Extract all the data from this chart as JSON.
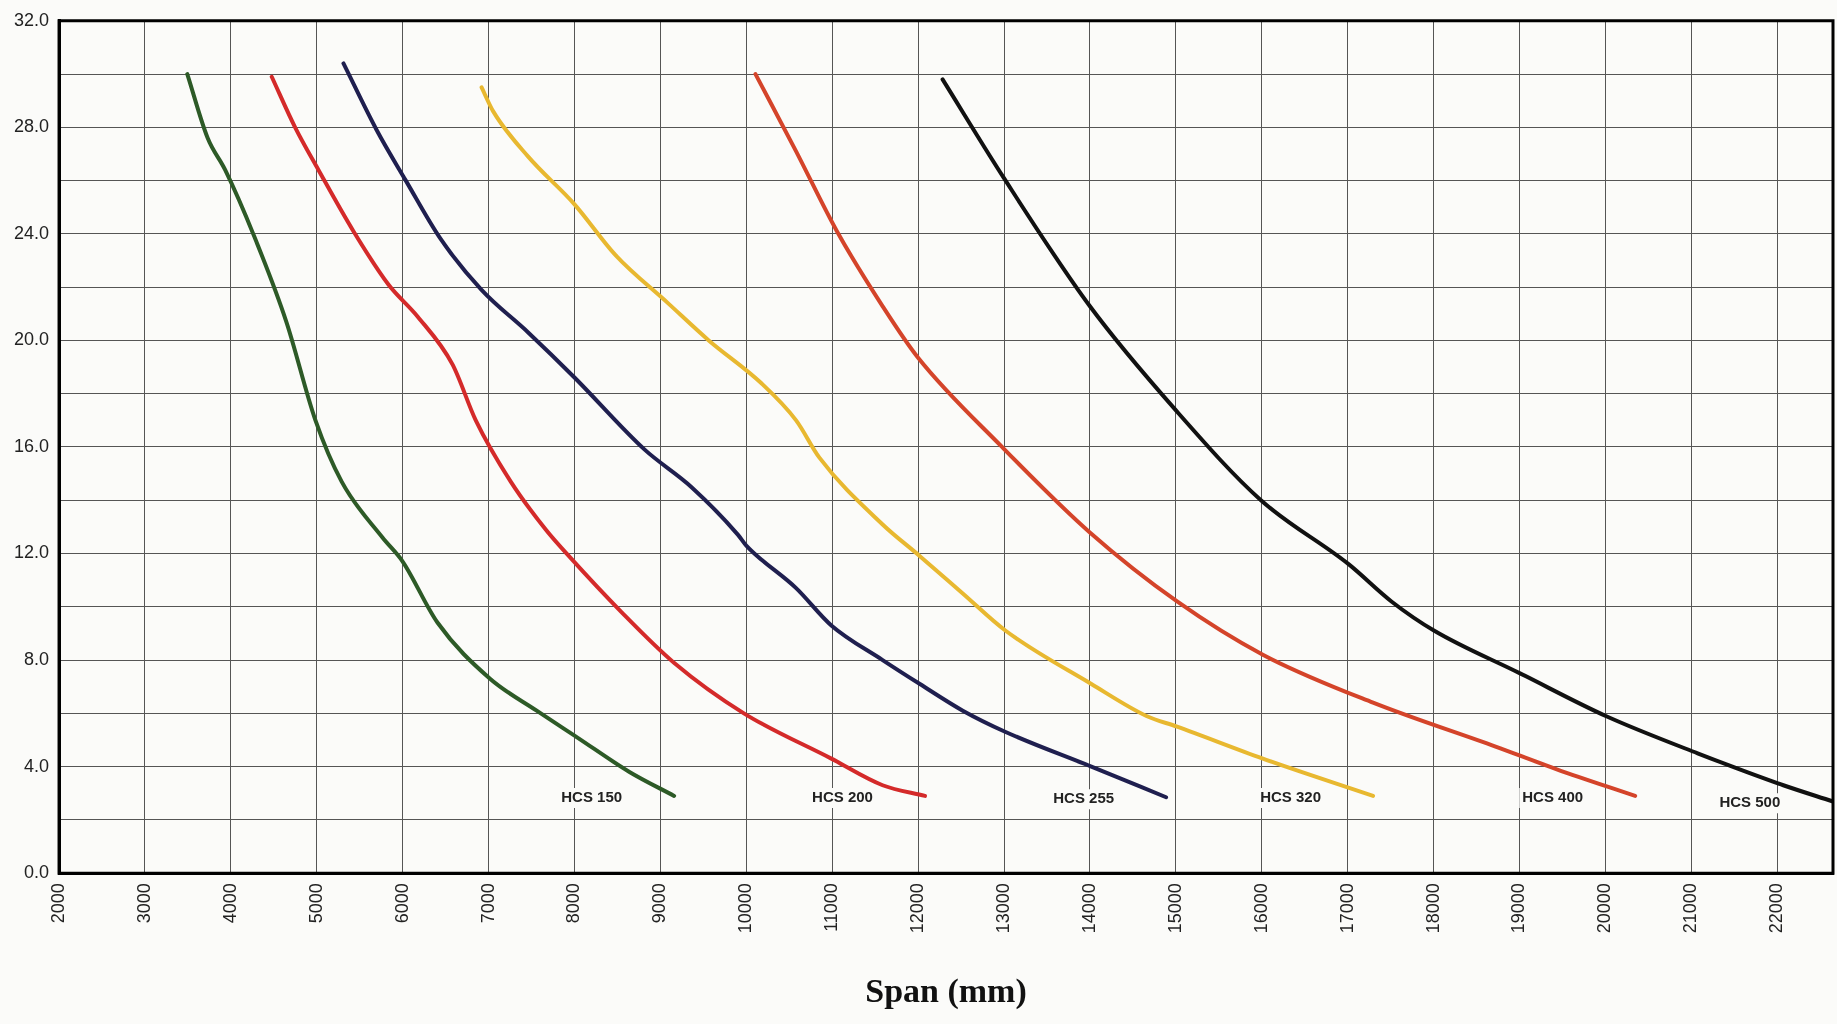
{
  "chart_data": {
    "type": "line",
    "xlabel": "Span (mm)",
    "xlim": [
      2000,
      22650
    ],
    "xticks": [
      2000,
      3000,
      4000,
      5000,
      6000,
      7000,
      8000,
      9000,
      10000,
      11000,
      12000,
      13000,
      14000,
      15000,
      16000,
      17000,
      18000,
      19000,
      20000,
      21000,
      22000
    ],
    "ylim": [
      0,
      32
    ],
    "yticks": [
      {
        "value": 0,
        "label": "0.0"
      },
      {
        "value": 2,
        "label": null
      },
      {
        "value": 4,
        "label": "4.0"
      },
      {
        "value": 6,
        "label": null
      },
      {
        "value": 8,
        "label": "8.0"
      },
      {
        "value": 10,
        "label": null
      },
      {
        "value": 12,
        "label": "12.0"
      },
      {
        "value": 14,
        "label": null
      },
      {
        "value": 16,
        "label": "16.0"
      },
      {
        "value": 18,
        "label": null
      },
      {
        "value": 20,
        "label": "20.0"
      },
      {
        "value": 22,
        "label": null
      },
      {
        "value": 24,
        "label": "24.0"
      },
      {
        "value": 26,
        "label": null
      },
      {
        "value": 28,
        "label": "28.0"
      },
      {
        "value": 30,
        "label": null
      },
      {
        "value": 32,
        "label": "32.0"
      }
    ],
    "grid": true,
    "series": [
      {
        "name": "HCS 150",
        "color": "#2d5a27",
        "x": [
          3493,
          3730,
          3934,
          4273,
          4646,
          4985,
          5290,
          5765,
          6000,
          6407,
          7017,
          7560,
          8030,
          8640,
          9160
        ],
        "values": [
          30.0,
          27.6,
          26.4,
          23.9,
          20.7,
          17.0,
          14.7,
          12.6,
          11.7,
          9.4,
          7.3,
          6.1,
          5.1,
          3.8,
          2.9
        ]
      },
      {
        "name": "HCS 200",
        "color": "#d42a2a",
        "x": [
          4476,
          4748,
          5020,
          5427,
          5834,
          6173,
          6580,
          6851,
          7258,
          7665,
          7936,
          8547,
          9158,
          9972,
          10990,
          11587,
          12080
        ],
        "values": [
          29.9,
          28.0,
          26.4,
          24.1,
          22.1,
          20.9,
          19.1,
          17.0,
          14.7,
          12.9,
          11.9,
          9.8,
          7.9,
          6.0,
          4.3,
          3.3,
          2.9
        ]
      },
      {
        "name": "HCS 255",
        "color": "#1f1f4f",
        "x": [
          5311,
          5697,
          6037,
          6444,
          6918,
          7461,
          8003,
          8817,
          9360,
          9904,
          10000,
          10580,
          10990,
          11587,
          12021,
          12520,
          13019,
          14017,
          14887
        ],
        "values": [
          30.4,
          27.9,
          26.0,
          23.8,
          21.9,
          20.3,
          18.6,
          15.9,
          14.5,
          12.7,
          12.3,
          10.7,
          9.3,
          8.0,
          7.1,
          6.1,
          5.3,
          4.0,
          2.85
        ]
      },
      {
        "name": "HCS 320",
        "color": "#e8b830",
        "x": [
          6919,
          7054,
          7461,
          8003,
          8478,
          9088,
          9563,
          10173,
          10580,
          10851,
          11584,
          12021,
          12520,
          13019,
          14017,
          14658,
          15015,
          16013,
          17296
        ],
        "values": [
          29.5,
          28.6,
          26.9,
          25.1,
          23.2,
          21.4,
          20.0,
          18.4,
          17.0,
          15.6,
          13.1,
          11.9,
          10.5,
          9.1,
          7.1,
          5.9,
          5.5,
          4.3,
          2.9
        ]
      },
      {
        "name": "HCS 400",
        "color": "#d4442a",
        "x": [
          10107,
          10580,
          11055,
          11584,
          12000,
          12977,
          13996,
          15015,
          16013,
          17296,
          18722,
          19435,
          20347
        ],
        "values": [
          30.0,
          27.1,
          24.1,
          21.3,
          19.35,
          16.0,
          12.8,
          10.2,
          8.2,
          6.4,
          4.75,
          3.9,
          2.9
        ]
      },
      {
        "name": "HCS 500",
        "color": "#111111",
        "x": [
          12285,
          12998,
          13996,
          14994,
          15991,
          17011,
          17510,
          18009,
          19007,
          20005,
          21074,
          22072,
          22642
        ],
        "values": [
          29.8,
          26.1,
          21.3,
          17.4,
          14.0,
          11.6,
          10.2,
          9.1,
          7.5,
          5.9,
          4.5,
          3.3,
          2.7
        ]
      }
    ]
  }
}
